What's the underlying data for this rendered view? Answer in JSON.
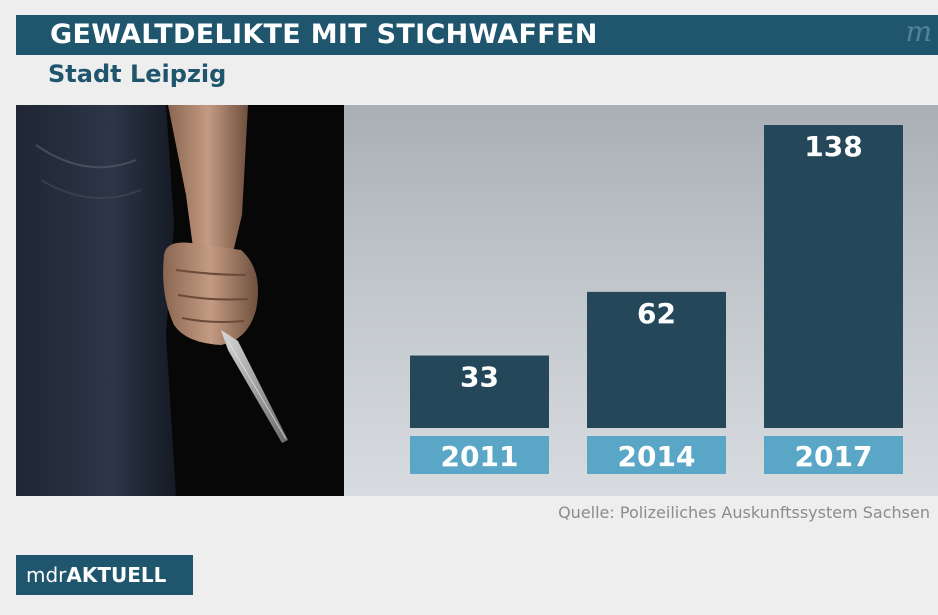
{
  "header": {
    "title": "GEWALTDELIKTE MIT STICHWAFFEN",
    "subtitle": "Stadt Leipzig",
    "logo_mark": "m"
  },
  "source": "Quelle: Polizeiliches Auskunftssystem Sachsen",
  "brand": {
    "prefix": "mdr",
    "name": "AKTUELL"
  },
  "colors": {
    "title_bar": "#1f566d",
    "bar": "#24485a",
    "year_label_bg": "#5aa6c6"
  },
  "chart_data": {
    "type": "bar",
    "title": "GEWALTDELIKTE MIT STICHWAFFEN",
    "subtitle": "Stadt Leipzig",
    "categories": [
      "2011",
      "2014",
      "2017"
    ],
    "values": [
      33,
      62,
      138
    ],
    "ylim": [
      0,
      138
    ],
    "grid": false,
    "data_labels": true
  }
}
